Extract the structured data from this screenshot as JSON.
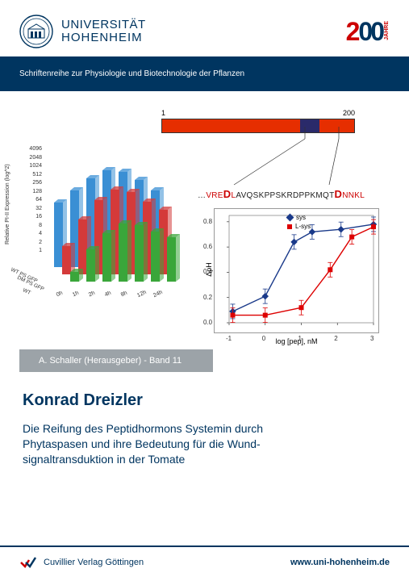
{
  "header": {
    "university_line1": "UNIVERSITÄT",
    "university_line2": "HOHENHEIM",
    "seal_color": "#003560",
    "anniversary_2": "2",
    "anniversary_00": "00",
    "anniversary_label": "JAHRE",
    "accent_red": "#c00"
  },
  "series_strip": "Schriftenreihe zur Physiologie und Biotechnologie der Pflanzen",
  "protein_bar": {
    "start": "1",
    "end": "200",
    "seg_colors": [
      "#e62e00",
      "#2a2a6a",
      "#e62e00"
    ]
  },
  "sequence": {
    "dots": "…",
    "red1": "VRE",
    "big1": "D",
    "mid_red": "L",
    "mid_black": "AVQSKPPSKRDPPKMQT",
    "big2": "D",
    "red2": "NNKL"
  },
  "bar3d": {
    "ylabel": "Relative PI-II Expression (log^2)",
    "yticks": [
      "4096",
      "2048",
      "1024",
      "512",
      "256",
      "128",
      "64",
      "32",
      "16",
      "8",
      "4",
      "2",
      "1"
    ],
    "x_categories": [
      "0h",
      "1h",
      "2h",
      "4h",
      "8h",
      "12h",
      "24h"
    ],
    "series_labels": [
      "WT PS GFP",
      "DM PS GFP",
      "WT"
    ],
    "series_colors": [
      "#3a8fd4",
      "#d43a3a",
      "#3aa63a"
    ]
  },
  "curve": {
    "ylabel": "ΔpH",
    "xlabel": "log [pep], nM",
    "xticks": [
      "-1",
      "0",
      "1",
      "2",
      "3"
    ],
    "yticks": [
      "0.0",
      "0.2",
      "0.4",
      "0.6",
      "0.8"
    ],
    "legend": [
      {
        "label": "sys",
        "color": "#1a3a8a",
        "marker": "diamond"
      },
      {
        "label": "L-sys",
        "color": "#d00",
        "marker": "square"
      }
    ],
    "sys_pts": [
      [
        -0.9,
        0.09
      ],
      [
        0,
        0.21
      ],
      [
        0.8,
        0.64
      ],
      [
        1.3,
        0.72
      ],
      [
        2.1,
        0.74
      ],
      [
        3,
        0.78
      ]
    ],
    "lsys_pts": [
      [
        -0.9,
        0.06
      ],
      [
        0,
        0.06
      ],
      [
        1,
        0.12
      ],
      [
        1.8,
        0.42
      ],
      [
        2.4,
        0.68
      ],
      [
        3,
        0.76
      ]
    ]
  },
  "editor_strip": "A. Schaller (Herausgeber) - Band 11",
  "author": "Konrad Dreizler",
  "title_l1": "Die Reifung des Peptidhormons Systemin durch",
  "title_l2": "Phytaspasen und ihre Bedeutung für die Wund-",
  "title_l3": "signaltransduktion in der Tomate",
  "publisher": "Cuvillier Verlag Göttingen",
  "website": "www.uni-hohenheim.de",
  "colors": {
    "primary": "#003560",
    "grey": "#9ca3a8",
    "bg": "#ffffff"
  }
}
